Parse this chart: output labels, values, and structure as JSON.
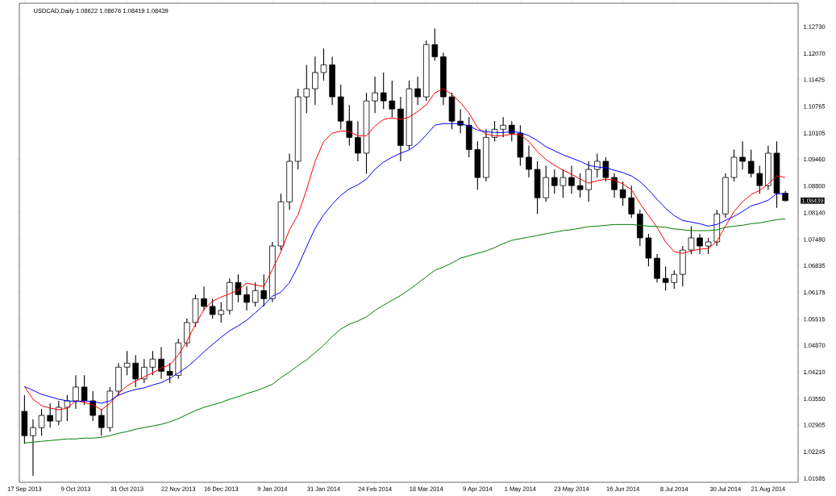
{
  "chart_data": {
    "type": "candlestick",
    "title": "USDCAD,Daily 1.08622 1.08676 1.08419 1.08439",
    "color": "#000000",
    "categories": [
      "17 Sep 2013",
      null,
      null,
      null,
      null,
      null,
      "9 Oct 2013",
      null,
      null,
      null,
      null,
      null,
      "31 Oct 2013",
      null,
      null,
      null,
      null,
      null,
      "22 Nov 2013",
      null,
      null,
      null,
      null,
      "16 Dec 2013",
      null,
      null,
      null,
      null,
      null,
      "9 Jan 2014",
      null,
      null,
      null,
      null,
      null,
      "31 Jan 2014",
      null,
      null,
      null,
      null,
      null,
      "24 Feb 2014",
      null,
      null,
      null,
      null,
      null,
      "18 Mar 2014",
      null,
      null,
      null,
      null,
      null,
      "9 Apr 2014",
      null,
      null,
      null,
      null,
      "1 May 2014",
      null,
      null,
      null,
      null,
      null,
      "23 May 2014",
      null,
      null,
      null,
      null,
      null,
      "16 Jun 2014",
      null,
      null,
      null,
      null,
      null,
      "8 Jul 2014",
      null,
      null,
      null,
      null,
      null,
      "30 Jul 2014",
      null,
      null,
      null,
      null,
      "21 Aug 2014",
      null,
      null
    ],
    "ohlc": [
      [
        1.0324,
        1.0364,
        1.0244,
        1.0264
      ],
      [
        1.0264,
        1.0304,
        1.0165,
        1.0284
      ],
      [
        1.0284,
        1.033,
        1.0264,
        1.0314
      ],
      [
        1.0314,
        1.0344,
        1.0284,
        1.03
      ],
      [
        1.03,
        1.035,
        1.029,
        1.0334
      ],
      [
        1.0334,
        1.0364,
        1.03,
        1.035
      ],
      [
        1.035,
        1.0413,
        1.033,
        1.0384
      ],
      [
        1.0384,
        1.0413,
        1.034,
        1.035
      ],
      [
        1.035,
        1.0374,
        1.03,
        1.0314
      ],
      [
        1.0314,
        1.033,
        1.0264,
        1.0284
      ],
      [
        1.0284,
        1.0384,
        1.0274,
        1.0374
      ],
      [
        1.0374,
        1.0443,
        1.0364,
        1.0433
      ],
      [
        1.0433,
        1.0473,
        1.0413,
        1.0443
      ],
      [
        1.0443,
        1.0463,
        1.0384,
        1.0404
      ],
      [
        1.0404,
        1.0453,
        1.0394,
        1.0433
      ],
      [
        1.0433,
        1.0473,
        1.0413,
        1.0453
      ],
      [
        1.0453,
        1.0483,
        1.0404,
        1.0423
      ],
      [
        1.0423,
        1.0443,
        1.0394,
        1.0413
      ],
      [
        1.0413,
        1.0503,
        1.0404,
        1.0493
      ],
      [
        1.0493,
        1.0553,
        1.0483,
        1.0543
      ],
      [
        1.0543,
        1.0612,
        1.0533,
        1.0602
      ],
      [
        1.0602,
        1.0632,
        1.0573,
        1.0583
      ],
      [
        1.0583,
        1.0602,
        1.0553,
        1.0563
      ],
      [
        1.0563,
        1.0593,
        1.0543,
        1.0573
      ],
      [
        1.0573,
        1.0652,
        1.0563,
        1.0642
      ],
      [
        1.0642,
        1.0662,
        1.0593,
        1.0612
      ],
      [
        1.0612,
        1.0632,
        1.0573,
        1.0593
      ],
      [
        1.0593,
        1.0642,
        1.0583,
        1.0622
      ],
      [
        1.0622,
        1.0662,
        1.0583,
        1.0602
      ],
      [
        1.0602,
        1.0742,
        1.0593,
        1.0732
      ],
      [
        1.0732,
        1.0861,
        1.0722,
        1.0841
      ],
      [
        1.0841,
        1.096,
        1.0821,
        1.0941
      ],
      [
        1.0941,
        1.112,
        1.0921,
        1.11
      ],
      [
        1.11,
        1.1179,
        1.106,
        1.112
      ],
      [
        1.112,
        1.1199,
        1.108,
        1.116
      ],
      [
        1.116,
        1.1219,
        1.114,
        1.1179
      ],
      [
        1.1179,
        1.1199,
        1.108,
        1.11
      ],
      [
        1.11,
        1.113,
        1.102,
        1.104
      ],
      [
        1.104,
        1.108,
        1.098,
        1.1
      ],
      [
        1.1,
        1.104,
        1.0941,
        1.0961
      ],
      [
        1.0961,
        1.111,
        1.091,
        1.109
      ],
      [
        1.109,
        1.115,
        1.106,
        1.111
      ],
      [
        1.111,
        1.116,
        1.107,
        1.109
      ],
      [
        1.109,
        1.114,
        1.105,
        1.107
      ],
      [
        1.107,
        1.11,
        1.0941,
        1.098
      ],
      [
        1.098,
        1.114,
        1.097,
        1.112
      ],
      [
        1.112,
        1.115,
        1.108,
        1.11
      ],
      [
        1.11,
        1.1239,
        1.109,
        1.1229
      ],
      [
        1.1229,
        1.1269,
        1.1189,
        1.1199
      ],
      [
        1.1199,
        1.1209,
        1.108,
        1.11
      ],
      [
        1.11,
        1.111,
        1.102,
        1.104
      ],
      [
        1.104,
        1.107,
        1.101,
        1.103
      ],
      [
        1.103,
        1.105,
        1.0951,
        1.097
      ],
      [
        1.097,
        1.099,
        1.0871,
        1.0901
      ],
      [
        1.0901,
        1.102,
        1.0891,
        1.1
      ],
      [
        1.1,
        1.104,
        1.099,
        1.102
      ],
      [
        1.102,
        1.105,
        1.1,
        1.103
      ],
      [
        1.103,
        1.104,
        1.099,
        1.101
      ],
      [
        1.101,
        1.103,
        1.093,
        1.0951
      ],
      [
        1.0951,
        1.098,
        1.0901,
        1.0921
      ],
      [
        1.0921,
        1.0941,
        1.0811,
        1.0851
      ],
      [
        1.0851,
        1.093,
        1.0841,
        1.0901
      ],
      [
        1.0901,
        1.0921,
        1.0861,
        1.0881
      ],
      [
        1.0881,
        1.0921,
        1.0851,
        1.0901
      ],
      [
        1.0901,
        1.093,
        1.0861,
        1.0881
      ],
      [
        1.0881,
        1.0911,
        1.0851,
        1.0871
      ],
      [
        1.0871,
        1.0941,
        1.0841,
        1.0921
      ],
      [
        1.0921,
        1.096,
        1.0901,
        1.0941
      ],
      [
        1.0941,
        1.0951,
        1.0891,
        1.0901
      ],
      [
        1.0901,
        1.0911,
        1.0851,
        1.0871
      ],
      [
        1.0871,
        1.0891,
        1.0831,
        1.0851
      ],
      [
        1.0851,
        1.0881,
        1.0801,
        1.0811
      ],
      [
        1.0811,
        1.0821,
        1.0732,
        1.0752
      ],
      [
        1.0752,
        1.0762,
        1.0682,
        1.0702
      ],
      [
        1.0702,
        1.0712,
        1.0642,
        1.0652
      ],
      [
        1.0652,
        1.0682,
        1.0622,
        1.0642
      ],
      [
        1.0642,
        1.0672,
        1.0626,
        1.0662
      ],
      [
        1.0662,
        1.0732,
        1.0632,
        1.0722
      ],
      [
        1.0722,
        1.0781,
        1.0712,
        1.0752
      ],
      [
        1.0752,
        1.0762,
        1.0712,
        1.0732
      ],
      [
        1.0732,
        1.0752,
        1.0712,
        1.0742
      ],
      [
        1.0742,
        1.0821,
        1.0732,
        1.0811
      ],
      [
        1.0811,
        1.0911,
        1.0801,
        1.0901
      ],
      [
        1.0901,
        1.097,
        1.0891,
        1.0951
      ],
      [
        1.0951,
        1.099,
        1.0921,
        1.0941
      ],
      [
        1.0941,
        1.097,
        1.0901,
        1.0911
      ],
      [
        1.0911,
        1.093,
        1.0861,
        1.0881
      ],
      [
        1.0881,
        1.098,
        1.0871,
        1.0961
      ],
      [
        1.0961,
        1.099,
        1.0826,
        1.0862
      ],
      [
        1.08622,
        1.08676,
        1.08419,
        1.08439
      ]
    ],
    "series": [
      {
        "type": "line",
        "color": "#ff0000",
        "values": [
          1.0385,
          1.0354,
          1.0338,
          1.0332,
          1.0328,
          1.0332,
          1.035,
          1.0346,
          1.034,
          1.0328,
          1.0344,
          1.0368,
          1.0387,
          1.0399,
          1.0409,
          1.0419,
          1.0431,
          1.0439,
          1.0463,
          1.0497,
          1.0539,
          1.0575,
          1.0596,
          1.0606,
          1.0614,
          1.0624,
          1.064,
          1.0636,
          1.0632,
          1.0674,
          1.0718,
          1.0772,
          1.0809,
          1.0871,
          1.0941,
          1.099,
          1.101,
          1.1016,
          1.1014,
          1.1004,
          1.1004,
          1.1028,
          1.1044,
          1.1048,
          1.1044,
          1.105,
          1.1064,
          1.108,
          1.111,
          1.112,
          1.1106,
          1.1086,
          1.106,
          1.1024,
          1.1008,
          1.1004,
          1.1004,
          1.1008,
          1.1006,
          1.099,
          1.0965,
          1.0945,
          1.0931,
          1.0919,
          1.0909,
          1.0897,
          1.0887,
          1.0893,
          1.0897,
          1.0895,
          1.0885,
          1.0871,
          1.0837,
          1.0807,
          1.0778,
          1.0742,
          1.0718,
          1.0714,
          1.072,
          1.0724,
          1.0726,
          1.0744,
          1.0781,
          1.0817,
          1.0841,
          1.0859,
          1.0869,
          1.0885,
          1.0905,
          1.0901
        ]
      },
      {
        "type": "line",
        "color": "#0000ff",
        "values": [
          1.0385,
          1.0376,
          1.0366,
          1.036,
          1.0354,
          1.035,
          1.0348,
          1.035,
          1.0348,
          1.0344,
          1.035,
          1.0364,
          1.0372,
          1.0378,
          1.0382,
          1.0389,
          1.0395,
          1.0405,
          1.0419,
          1.0433,
          1.0451,
          1.0471,
          1.0489,
          1.0507,
          1.0523,
          1.0535,
          1.0549,
          1.0567,
          1.0586,
          1.0608,
          1.0618,
          1.0642,
          1.0682,
          1.073,
          1.0776,
          1.0809,
          1.0835,
          1.0857,
          1.0873,
          1.0883,
          1.0897,
          1.0921,
          1.0939,
          1.0951,
          1.0961,
          1.0969,
          1.0984,
          1.1006,
          1.103,
          1.1034,
          1.1034,
          1.1034,
          1.1028,
          1.1018,
          1.1014,
          1.1012,
          1.1012,
          1.1014,
          1.1012,
          1.1004,
          1.0992,
          1.0977,
          1.0967,
          1.0957,
          1.0949,
          1.0941,
          1.0931,
          1.0927,
          1.0925,
          1.0919,
          1.0913,
          1.0905,
          1.0891,
          1.0871,
          1.0847,
          1.0825,
          1.0807,
          1.0795,
          1.0791,
          1.0787,
          1.0781,
          1.0785,
          1.0795,
          1.0805,
          1.0817,
          1.0831,
          1.0837,
          1.0845,
          1.0861,
          1.0861
        ]
      },
      {
        "type": "line",
        "color": "#008000",
        "values": [
          1.0246,
          1.0248,
          1.025,
          1.0252,
          1.0254,
          1.0256,
          1.0256,
          1.0258,
          1.0258,
          1.026,
          1.0264,
          1.027,
          1.0274,
          1.028,
          1.0284,
          1.0288,
          1.0292,
          1.0298,
          1.0306,
          1.0316,
          1.0326,
          1.0334,
          1.034,
          1.0346,
          1.0354,
          1.036,
          1.0368,
          1.0374,
          1.0382,
          1.0391,
          1.0407,
          1.0421,
          1.0437,
          1.0451,
          1.0469,
          1.0487,
          1.0509,
          1.0527,
          1.0539,
          1.0547,
          1.0557,
          1.0573,
          1.0586,
          1.0598,
          1.061,
          1.0624,
          1.064,
          1.0656,
          1.0672,
          1.068,
          1.069,
          1.0702,
          1.0708,
          1.0714,
          1.072,
          1.0728,
          1.0738,
          1.0746,
          1.075,
          1.0754,
          1.0758,
          1.0762,
          1.0766,
          1.077,
          1.0772,
          1.0776,
          1.078,
          1.0781,
          1.0783,
          1.0785,
          1.0785,
          1.0785,
          1.0783,
          1.0781,
          1.078,
          1.0778,
          1.0774,
          1.0772,
          1.077,
          1.077,
          1.077,
          1.0772,
          1.0778,
          1.0781,
          1.0783,
          1.0787,
          1.0789,
          1.0793,
          1.0797,
          1.0799
        ]
      }
    ],
    "ylim": [
      1.0149,
      1.1331
    ],
    "yticks": [
      {
        "value": 1.1273,
        "label": "1.12730"
      },
      {
        "value": 1.1207,
        "label": "1.12070"
      },
      {
        "value": 1.11425,
        "label": "1.11425"
      },
      {
        "value": 1.10765,
        "label": "1.10765"
      },
      {
        "value": 1.10105,
        "label": "1.10105"
      },
      {
        "value": 1.0946,
        "label": "1.09460"
      },
      {
        "value": 1.088,
        "label": "1.08800"
      },
      {
        "value": 1.0814,
        "label": "1.08140"
      },
      {
        "value": 1.0748,
        "label": "1.07480"
      },
      {
        "value": 1.06835,
        "label": "1.06835"
      },
      {
        "value": 1.06175,
        "label": "1.06175"
      },
      {
        "value": 1.05515,
        "label": "1.05515"
      },
      {
        "value": 1.0487,
        "label": "1.04870"
      },
      {
        "value": 1.0421,
        "label": "1.04210"
      },
      {
        "value": 1.0355,
        "label": "1.03550"
      },
      {
        "value": 1.02905,
        "label": "1.02905"
      },
      {
        "value": 1.02245,
        "label": "1.02245"
      },
      {
        "value": 1.01585,
        "label": "1.01585"
      }
    ],
    "annotations": [
      "1.08439"
    ]
  }
}
